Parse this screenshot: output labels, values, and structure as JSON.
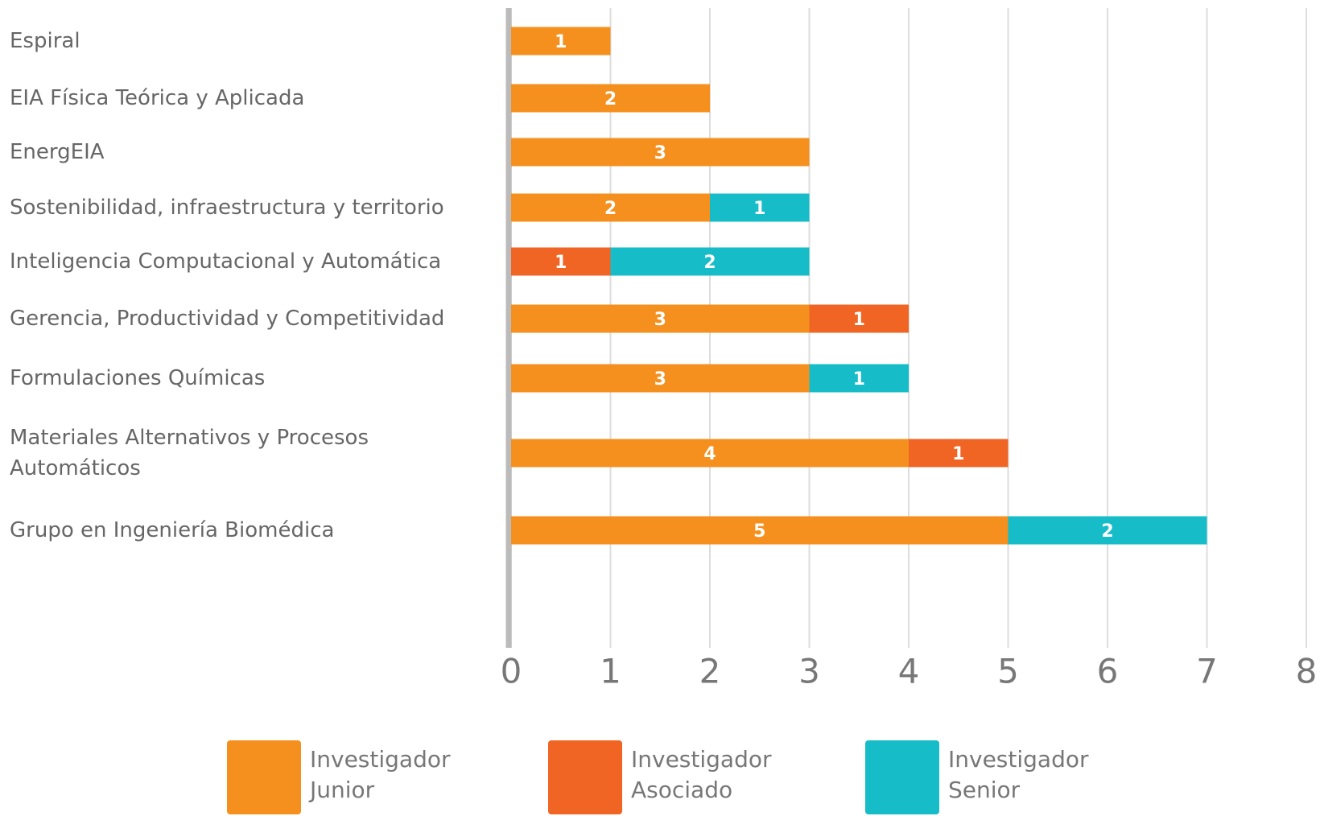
{
  "chart_data": {
    "type": "stacked_barh",
    "categories": [
      "Espiral",
      "EIA Física Teórica y Aplicada",
      "EnergEIA",
      "Sostenibilidad, infraestructura y territorio",
      "Inteligencia Computacional y Automática",
      "Gerencia, Productividad y Competitividad",
      "Formulaciones Químicas",
      "Materiales Alternativos y Procesos Automáticos",
      "Grupo en Ingeniería Biomédica"
    ],
    "series": [
      {
        "name": "Investigador Junior",
        "color": "#f5901e",
        "values": [
          1,
          2,
          3,
          2,
          null,
          3,
          3,
          4,
          5
        ]
      },
      {
        "name": "Investigador Asociado",
        "color": "#f06424",
        "values": [
          null,
          null,
          null,
          null,
          1,
          1,
          null,
          1,
          null
        ]
      },
      {
        "name": "Investigador Senior",
        "color": "#16bcc7",
        "values": [
          null,
          null,
          null,
          1,
          2,
          null,
          1,
          null,
          2
        ]
      }
    ],
    "xlim": [
      0,
      8
    ],
    "xticks": [
      0,
      1,
      2,
      3,
      4,
      5,
      6,
      7,
      8
    ],
    "grid": true,
    "legend": "bottom"
  }
}
